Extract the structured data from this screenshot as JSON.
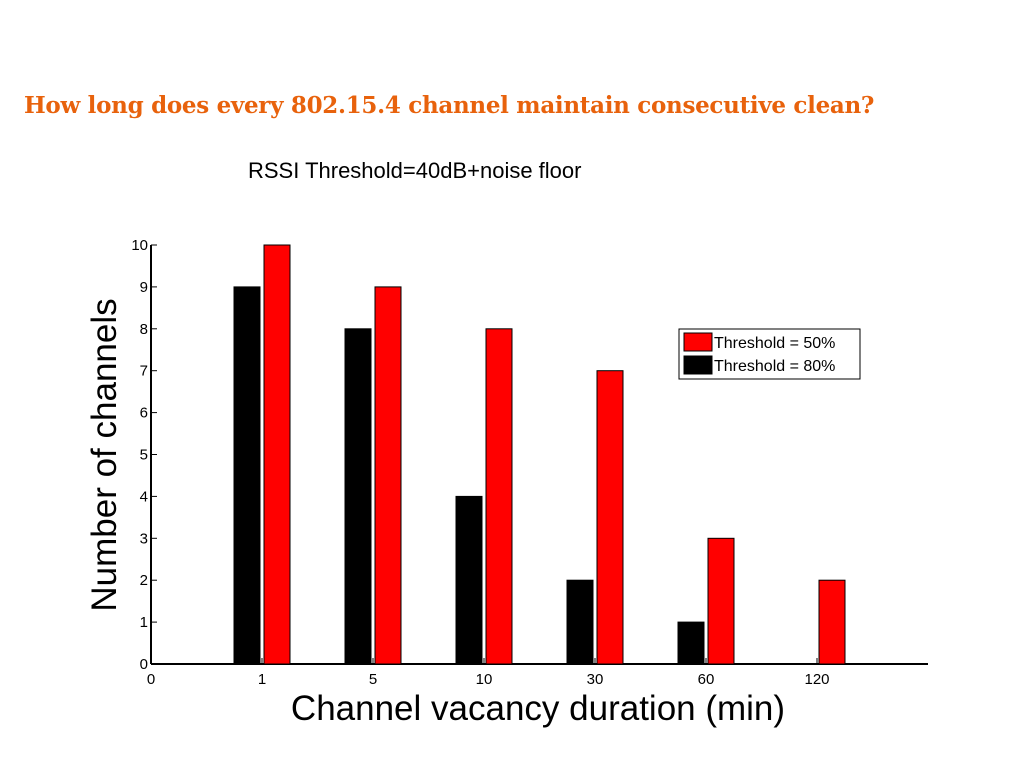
{
  "slide": {
    "title": "How long does every 802.15.4 channel maintain consecutive clean?"
  },
  "chart_data": {
    "type": "bar",
    "title": "RSSI Threshold=40dB+noise floor",
    "xlabel": "Channel vacancy duration (min)",
    "ylabel": "Number of channels",
    "x_ticks": [
      "0",
      "1",
      "5",
      "10",
      "30",
      "60",
      "120"
    ],
    "categories": [
      "1",
      "5",
      "10",
      "30",
      "60",
      "120"
    ],
    "series": [
      {
        "name": "Threshold = 80%",
        "color": "#000000",
        "values": [
          9,
          8,
          4,
          2,
          1,
          0
        ]
      },
      {
        "name": "Threshold = 50%",
        "color": "#ff0000",
        "values": [
          10,
          9,
          8,
          7,
          3,
          2
        ]
      }
    ],
    "ylim": [
      0,
      10
    ],
    "y_ticks": [
      0,
      1,
      2,
      3,
      4,
      5,
      6,
      7,
      8,
      9,
      10
    ],
    "legend": {
      "placement": "right",
      "order": [
        "Threshold = 50%",
        "Threshold = 80%"
      ]
    },
    "grid": false
  }
}
